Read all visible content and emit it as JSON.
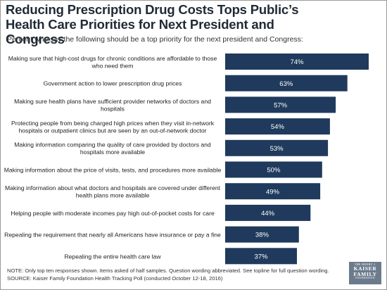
{
  "header": {
    "title": "Reducing Prescription Drug Costs Tops Public’s Health Care Priorities for Next President and Congress",
    "subtitle": "Percent who say the following should be a top priority for the next president and Congress:"
  },
  "chart_data": {
    "type": "bar",
    "orientation": "horizontal",
    "title": "Reducing Prescription Drug Costs Tops Public’s Health Care Priorities for Next President and Congress",
    "subtitle": "Percent who say the following should be a top priority for the next president and Congress:",
    "xlim": [
      0,
      74
    ],
    "grid": false,
    "bar_color": "#1f3a5c",
    "label_color": "#ffffff",
    "categories": [
      [
        "Making sure that high-cost drugs for chronic conditions are affordable to those",
        "who need them"
      ],
      [
        "Government action to lower prescription drug prices"
      ],
      [
        "Making sure health plans have sufficient provider networks of doctors and",
        "hospitals"
      ],
      [
        "Protecting people from being charged high prices when they visit in-network",
        "hospitals or outpatient clinics but are seen by an out-of-network doctor"
      ],
      [
        "Making information comparing the quality of care provided by doctors and",
        "hospitals more available"
      ],
      [
        "Making information about the price of visits, tests, and procedures more available"
      ],
      [
        "Making information about what doctors and hospitals are covered under different",
        "health plans more available"
      ],
      [
        "Helping people with moderate incomes pay high out-of-pocket costs for care"
      ],
      [
        "Repealing the requirement that nearly all Americans have insurance or pay a fine"
      ],
      [
        "Repealing the entire health care law"
      ]
    ],
    "values": [
      74,
      63,
      57,
      54,
      53,
      50,
      49,
      44,
      38,
      37
    ],
    "value_labels": [
      "74%",
      "63%",
      "57%",
      "54%",
      "53%",
      "50%",
      "49%",
      "44%",
      "38%",
      "37%"
    ]
  },
  "footer": {
    "note": "NOTE: Only top ten responses shown. Items asked of half samples. Question wording abbreviated. See topline for full question wording.",
    "source": "SOURCE: Kaiser Family Foundation Health Tracking Poll (conducted October 12-18, 2016)"
  },
  "logo": {
    "line1": "THE HENRY J.",
    "line2a": "KAISER",
    "line2b": "FAMILY",
    "line3": "FOUNDATION"
  }
}
